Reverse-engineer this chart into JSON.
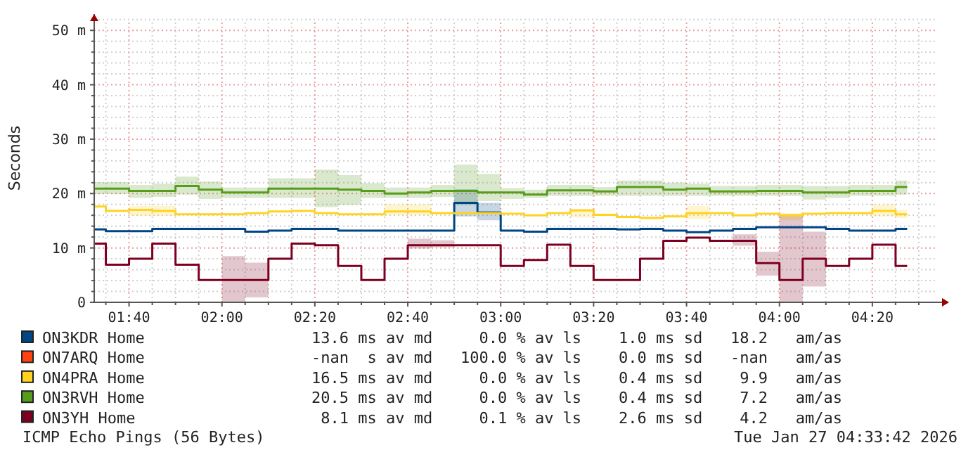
{
  "chart_data": {
    "type": "step",
    "ylabel": "Seconds",
    "x": [
      "2026-01-27T01:32:30",
      "2026-01-27T01:37:30",
      "2026-01-27T01:42:30",
      "2026-01-27T01:47:30",
      "2026-01-27T01:52:30",
      "2026-01-27T01:57:30",
      "2026-01-27T02:02:30",
      "2026-01-27T02:07:30",
      "2026-01-27T02:12:30",
      "2026-01-27T02:17:30",
      "2026-01-27T02:22:30",
      "2026-01-27T02:27:30",
      "2026-01-27T02:32:30",
      "2026-01-27T02:37:30",
      "2026-01-27T02:42:30",
      "2026-01-27T02:47:30",
      "2026-01-27T02:52:30",
      "2026-01-27T02:57:30",
      "2026-01-27T03:02:30",
      "2026-01-27T03:07:30",
      "2026-01-27T03:12:30",
      "2026-01-27T03:17:30",
      "2026-01-27T03:22:30",
      "2026-01-27T03:27:30",
      "2026-01-27T03:32:30",
      "2026-01-27T03:37:30",
      "2026-01-27T03:42:30",
      "2026-01-27T03:47:30",
      "2026-01-27T03:52:30",
      "2026-01-27T03:57:30",
      "2026-01-27T04:02:30",
      "2026-01-27T04:07:30",
      "2026-01-27T04:12:30",
      "2026-01-27T04:17:30",
      "2026-01-27T04:22:30",
      "2026-01-27T04:27:30"
    ],
    "series": [
      {
        "name": "ON3KDR Home",
        "color": "#004586",
        "values": [
          13.4,
          13.1,
          13.1,
          13.5,
          13.5,
          13.5,
          13.5,
          13.0,
          13.2,
          13.5,
          13.5,
          13.2,
          13.2,
          13.2,
          13.2,
          13.2,
          18.3,
          16.5,
          13.2,
          13.0,
          13.5,
          13.5,
          13.5,
          13.4,
          13.5,
          13.2,
          12.9,
          13.2,
          13.5,
          13.8,
          13.8,
          13.8,
          13.5,
          13.2,
          13.2,
          13.5
        ],
        "lower": [
          13.4,
          13.1,
          13.1,
          13.5,
          13.5,
          13.5,
          13.5,
          13.0,
          13.2,
          13.5,
          13.5,
          13.2,
          13.2,
          13.2,
          13.2,
          13.2,
          15.8,
          15.1,
          13.2,
          13.0,
          13.5,
          13.5,
          13.5,
          13.4,
          13.5,
          13.2,
          12.9,
          13.2,
          13.5,
          13.8,
          13.8,
          13.8,
          13.5,
          13.2,
          13.2,
          13.5
        ],
        "upper": [
          13.4,
          13.1,
          13.1,
          13.5,
          13.5,
          13.5,
          13.5,
          13.0,
          13.2,
          13.5,
          13.5,
          13.2,
          13.2,
          13.2,
          13.2,
          13.2,
          20.8,
          18.3,
          13.2,
          13.0,
          13.5,
          13.5,
          13.5,
          13.4,
          13.5,
          13.2,
          12.9,
          13.2,
          13.5,
          13.8,
          13.8,
          13.8,
          13.5,
          13.2,
          13.2,
          13.5
        ]
      },
      {
        "name": "ON7ARQ Home",
        "color": "#ff420e",
        "values": [
          null,
          null,
          null,
          null,
          null,
          null,
          null,
          null,
          null,
          null,
          null,
          null,
          null,
          null,
          null,
          null,
          null,
          null,
          null,
          null,
          null,
          null,
          null,
          null,
          null,
          null,
          null,
          null,
          null,
          null,
          null,
          null,
          null,
          null,
          null,
          null
        ]
      },
      {
        "name": "ON4PRA Home",
        "color": "#ffd320",
        "values": [
          17.6,
          16.8,
          17.0,
          16.8,
          16.2,
          16.2,
          16.2,
          16.4,
          16.7,
          16.8,
          16.4,
          16.2,
          16.2,
          16.7,
          16.7,
          16.4,
          16.4,
          16.4,
          16.3,
          16.0,
          16.4,
          16.9,
          16.1,
          15.7,
          15.5,
          15.8,
          16.4,
          16.4,
          16.0,
          16.3,
          16.0,
          16.3,
          16.4,
          16.4,
          16.8,
          16.2
        ],
        "lower": [
          17.6,
          16.8,
          15.9,
          15.9,
          16.2,
          16.2,
          16.2,
          16.4,
          16.7,
          16.8,
          16.4,
          16.2,
          16.2,
          16.0,
          16.0,
          16.4,
          16.4,
          16.4,
          16.3,
          16.0,
          16.4,
          15.6,
          16.1,
          15.7,
          15.5,
          15.8,
          15.3,
          16.4,
          16.0,
          16.3,
          15.1,
          16.3,
          16.4,
          16.4,
          15.8,
          15.5
        ],
        "upper": [
          17.6,
          16.8,
          17.7,
          17.7,
          16.2,
          16.2,
          16.2,
          16.4,
          16.7,
          16.8,
          16.4,
          16.2,
          16.2,
          18.0,
          18.0,
          16.4,
          16.4,
          16.4,
          16.3,
          16.0,
          16.4,
          17.2,
          16.1,
          15.7,
          15.5,
          15.8,
          17.7,
          16.4,
          16.0,
          16.3,
          16.4,
          16.3,
          16.4,
          16.4,
          18.0,
          17.0
        ]
      },
      {
        "name": "ON3RVH Home",
        "color": "#579d1c",
        "values": [
          20.9,
          20.9,
          20.5,
          20.5,
          21.4,
          20.7,
          20.2,
          20.2,
          20.9,
          20.9,
          20.9,
          20.7,
          20.5,
          20.0,
          20.2,
          20.5,
          20.5,
          20.2,
          20.2,
          19.8,
          20.6,
          20.6,
          20.4,
          21.2,
          21.2,
          20.7,
          20.9,
          20.4,
          20.4,
          20.5,
          20.5,
          20.2,
          20.2,
          20.5,
          20.5,
          21.2
        ],
        "lower": [
          19.9,
          19.9,
          19.2,
          19.4,
          19.8,
          19.0,
          19.2,
          19.2,
          19.2,
          19.2,
          17.5,
          17.9,
          19.2,
          19.2,
          19.2,
          19.4,
          17.9,
          18.6,
          19.0,
          19.2,
          19.6,
          19.6,
          19.6,
          19.6,
          19.6,
          19.6,
          19.6,
          19.6,
          19.6,
          19.6,
          19.6,
          18.9,
          19.2,
          19.6,
          19.6,
          19.8
        ],
        "upper": [
          22.1,
          22.1,
          21.6,
          21.8,
          23.1,
          22.2,
          21.1,
          21.1,
          22.8,
          22.8,
          24.4,
          23.4,
          21.9,
          21.1,
          21.1,
          21.6,
          25.3,
          23.6,
          21.0,
          20.7,
          21.6,
          21.6,
          21.2,
          22.4,
          22.4,
          22.0,
          21.8,
          21.4,
          21.4,
          21.6,
          21.6,
          21.4,
          21.4,
          21.6,
          21.6,
          22.4
        ]
      },
      {
        "name": "ON3YH Home",
        "color": "#7e0021",
        "values": [
          10.8,
          6.9,
          8.0,
          10.8,
          6.9,
          4.1,
          4.1,
          4.1,
          8.0,
          10.8,
          10.5,
          6.7,
          4.1,
          8.0,
          10.5,
          10.5,
          10.5,
          10.5,
          6.7,
          7.8,
          10.6,
          6.7,
          4.1,
          4.1,
          8.0,
          11.3,
          11.9,
          11.3,
          11.3,
          7.2,
          4.1,
          8.0,
          6.7,
          8.0,
          10.6,
          6.7
        ],
        "lower": [
          10.8,
          6.9,
          8.0,
          10.8,
          6.9,
          4.1,
          0,
          0.9,
          8.0,
          10.8,
          10.5,
          6.7,
          4.1,
          8.0,
          9.9,
          10.1,
          10.5,
          10.5,
          6.7,
          7.8,
          10.6,
          6.7,
          4.1,
          4.1,
          8.0,
          11.3,
          11.9,
          11.3,
          10.4,
          4.9,
          0,
          2.9,
          6.7,
          8.0,
          10.6,
          6.7
        ],
        "upper": [
          10.8,
          6.9,
          8.0,
          10.8,
          6.9,
          4.1,
          8.5,
          7.3,
          8.0,
          10.8,
          10.5,
          6.7,
          4.1,
          8.0,
          11.7,
          11.4,
          10.5,
          10.5,
          6.7,
          7.8,
          10.6,
          6.7,
          4.1,
          4.1,
          8.0,
          11.3,
          11.9,
          11.3,
          12.5,
          9.3,
          16.2,
          13.0,
          6.7,
          8.0,
          10.6,
          6.7
        ]
      }
    ],
    "xlim": [
      "2026-01-27T01:32:30",
      "2026-01-27T04:35"
    ],
    "xticks": [
      {
        "value": "2026-01-27T01:35",
        "label": null
      },
      {
        "value": "2026-01-27T01:40",
        "label": "01:40"
      },
      {
        "value": "2026-01-27T01:45",
        "label": null
      },
      {
        "value": "2026-01-27T01:50",
        "label": null
      },
      {
        "value": "2026-01-27T01:55",
        "label": null
      },
      {
        "value": "2026-01-27T02:00",
        "label": "02:00"
      },
      {
        "value": "2026-01-27T02:05",
        "label": null
      },
      {
        "value": "2026-01-27T02:10",
        "label": null
      },
      {
        "value": "2026-01-27T02:15",
        "label": null
      },
      {
        "value": "2026-01-27T02:20",
        "label": "02:20"
      },
      {
        "value": "2026-01-27T02:25",
        "label": null
      },
      {
        "value": "2026-01-27T02:30",
        "label": null
      },
      {
        "value": "2026-01-27T02:35",
        "label": null
      },
      {
        "value": "2026-01-27T02:40",
        "label": "02:40"
      },
      {
        "value": "2026-01-27T02:45",
        "label": null
      },
      {
        "value": "2026-01-27T02:50",
        "label": null
      },
      {
        "value": "2026-01-27T02:55",
        "label": null
      },
      {
        "value": "2026-01-27T03:00",
        "label": "03:00"
      },
      {
        "value": "2026-01-27T03:05",
        "label": null
      },
      {
        "value": "2026-01-27T03:10",
        "label": null
      },
      {
        "value": "2026-01-27T03:15",
        "label": null
      },
      {
        "value": "2026-01-27T03:20",
        "label": "03:20"
      },
      {
        "value": "2026-01-27T03:25",
        "label": null
      },
      {
        "value": "2026-01-27T03:30",
        "label": null
      },
      {
        "value": "2026-01-27T03:35",
        "label": null
      },
      {
        "value": "2026-01-27T03:40",
        "label": "03:40"
      },
      {
        "value": "2026-01-27T03:45",
        "label": null
      },
      {
        "value": "2026-01-27T03:50",
        "label": null
      },
      {
        "value": "2026-01-27T03:55",
        "label": null
      },
      {
        "value": "2026-01-27T04:00",
        "label": "04:00"
      },
      {
        "value": "2026-01-27T04:05",
        "label": null
      },
      {
        "value": "2026-01-27T04:10",
        "label": null
      },
      {
        "value": "2026-01-27T04:15",
        "label": null
      },
      {
        "value": "2026-01-27T04:20",
        "label": "04:20"
      },
      {
        "value": "2026-01-27T04:25",
        "label": null
      },
      {
        "value": "2026-01-27T04:30",
        "label": null
      }
    ],
    "ylim": [
      0,
      53
    ],
    "yticks": [
      0,
      {
        "value": 2,
        "label": null
      },
      {
        "value": 4,
        "label": null
      },
      {
        "value": 6,
        "label": null
      },
      {
        "value": 8,
        "label": null
      },
      {
        "value": 10,
        "label": "10 m"
      },
      {
        "value": 12,
        "label": null
      },
      {
        "value": 14,
        "label": null
      },
      {
        "value": 16,
        "label": null
      },
      {
        "value": 18,
        "label": null
      },
      {
        "value": 20,
        "label": "20 m"
      },
      {
        "value": 22,
        "label": null
      },
      {
        "value": 24,
        "label": null
      },
      {
        "value": 26,
        "label": null
      },
      {
        "value": 28,
        "label": null
      },
      {
        "value": 30,
        "label": "30 m"
      },
      {
        "value": 32,
        "label": null
      },
      {
        "value": 34,
        "label": null
      },
      {
        "value": 36,
        "label": null
      },
      {
        "value": 38,
        "label": null
      },
      {
        "value": 40,
        "label": "40 m"
      },
      {
        "value": 42,
        "label": null
      },
      {
        "value": 44,
        "label": null
      },
      {
        "value": 46,
        "label": null
      },
      {
        "value": 48,
        "label": null
      },
      {
        "value": 50,
        "label": "50 m"
      },
      {
        "value": 52,
        "label": null
      }
    ],
    "grid": true,
    "legend": "bottom",
    "annotations": [
      "13.6 ms av md     0.0 % av ls    1.0 ms sd   18.2   am/as",
      "-nan  s av md   100.0 % av ls    0.0 ms sd   -nan   am/as",
      "16.5 ms av md     0.0 % av ls    0.4 ms sd    9.9   am/as",
      "20.5 ms av md     0.0 % av ls    0.4 ms sd    7.2   am/as",
      "8.1 ms av md     0.1 % av ls    2.6 ms sd    4.2   am/as",
      "ICMP Echo Pings (56 Bytes)",
      "Tue Jan 27 04:33:42 2026"
    ]
  }
}
